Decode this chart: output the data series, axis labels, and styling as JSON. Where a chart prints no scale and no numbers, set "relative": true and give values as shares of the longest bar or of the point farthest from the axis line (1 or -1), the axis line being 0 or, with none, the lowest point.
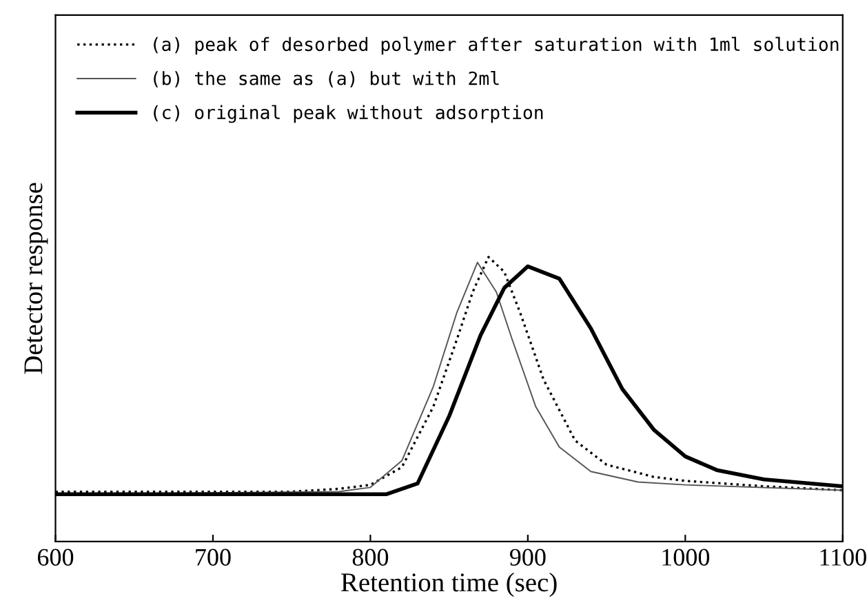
{
  "chart_data": {
    "type": "line",
    "xlabel": "Retention time (sec)",
    "ylabel": "Detector response",
    "relative": true,
    "xlim": [
      600,
      1100
    ],
    "xticks": [
      600,
      700,
      800,
      900,
      1000,
      1100
    ],
    "legend": "top left",
    "grid": false,
    "marker": "none",
    "series": [
      {
        "name": "(a) peak of desorbed polymer after saturation with 1ml solution",
        "color": "#000000",
        "line_style": "dotted",
        "x": [
          600,
          750,
          780,
          800,
          820,
          840,
          855,
          865,
          875,
          885,
          895,
          910,
          930,
          950,
          980,
          1000,
          1050,
          1100
        ],
        "values": [
          0.175,
          0.175,
          0.185,
          0.199,
          0.261,
          0.474,
          0.711,
          0.877,
          1,
          0.948,
          0.806,
          0.569,
          0.355,
          0.27,
          0.227,
          0.213,
          0.194,
          0.18
        ]
      },
      {
        "name": "(b) the same as (a) but with 2ml",
        "color": "#555555",
        "line_style": "solid",
        "x": [
          600,
          780,
          800,
          820,
          840,
          855,
          868,
          880,
          890,
          905,
          920,
          940,
          970,
          1000,
          1100
        ],
        "values": [
          0.166,
          0.175,
          0.19,
          0.284,
          0.545,
          0.806,
          0.981,
          0.877,
          0.711,
          0.474,
          0.332,
          0.246,
          0.209,
          0.199,
          0.18
        ]
      },
      {
        "name": "(c) original peak without adsorption",
        "color": "#000000",
        "line_style": "solid",
        "x": [
          600,
          810,
          830,
          850,
          870,
          885,
          900,
          920,
          940,
          960,
          980,
          1000,
          1020,
          1050,
          1100
        ],
        "values": [
          0.166,
          0.166,
          0.204,
          0.44,
          0.725,
          0.891,
          0.967,
          0.924,
          0.749,
          0.536,
          0.393,
          0.299,
          0.251,
          0.218,
          0.194
        ]
      }
    ]
  }
}
